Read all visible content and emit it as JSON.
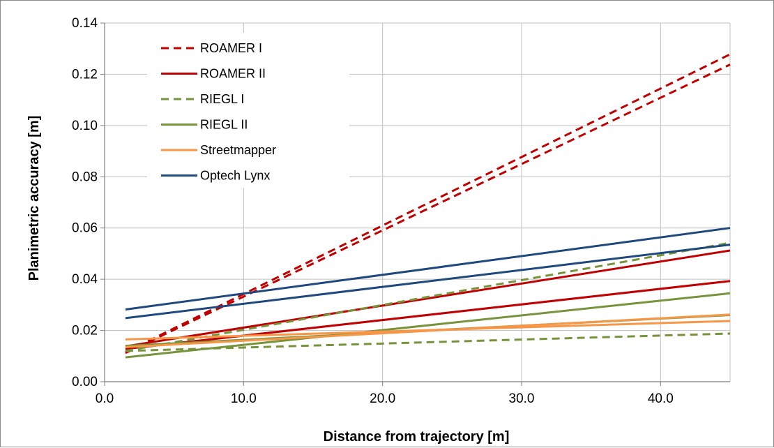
{
  "chart_data": {
    "type": "line",
    "title": "",
    "xlabel": "Distance from trajectory [m]",
    "ylabel": "Planimetric accuracy [m]",
    "xlim": [
      0,
      45
    ],
    "ylim": [
      0,
      0.14
    ],
    "x_ticks": [
      0,
      10,
      20,
      30,
      40
    ],
    "x_tick_labels": [
      "0.0",
      "10.0",
      "20.0",
      "30.0",
      "40.0"
    ],
    "y_ticks": [
      0,
      0.02,
      0.04,
      0.06,
      0.08,
      0.1,
      0.12,
      0.14
    ],
    "y_tick_labels": [
      "0.00",
      "0.02",
      "0.04",
      "0.06",
      "0.08",
      "0.10",
      "0.12",
      "0.14"
    ],
    "grid": true,
    "legend_position": "top-left",
    "legend": [
      {
        "label": "ROAMER I",
        "color": "#c00000",
        "dashed": true
      },
      {
        "label": "ROAMER II",
        "color": "#c00000",
        "dashed": false
      },
      {
        "label": "RIEGL I",
        "color": "#77933c",
        "dashed": true
      },
      {
        "label": "RIEGL II",
        "color": "#77933c",
        "dashed": false
      },
      {
        "label": "Streetmapper",
        "color": "#f79646",
        "dashed": false
      },
      {
        "label": "Optech Lynx",
        "color": "#1f497d",
        "dashed": false
      }
    ],
    "series": [
      {
        "name": "ROAMER I",
        "color": "#c00000",
        "dashed": true,
        "x": [
          1.5,
          45
        ],
        "y": [
          0.0115,
          0.1278
        ]
      },
      {
        "name": "ROAMER I",
        "color": "#c00000",
        "dashed": true,
        "x": [
          1.5,
          45
        ],
        "y": [
          0.0112,
          0.1238
        ]
      },
      {
        "name": "ROAMER II",
        "color": "#c00000",
        "dashed": false,
        "x": [
          1.5,
          45
        ],
        "y": [
          0.0138,
          0.0512
        ]
      },
      {
        "name": "ROAMER II",
        "color": "#c00000",
        "dashed": false,
        "x": [
          1.5,
          45
        ],
        "y": [
          0.0128,
          0.0393
        ]
      },
      {
        "name": "RIEGL I",
        "color": "#77933c",
        "dashed": true,
        "x": [
          1.5,
          45
        ],
        "y": [
          0.012,
          0.0542
        ]
      },
      {
        "name": "RIEGL I",
        "color": "#77933c",
        "dashed": true,
        "x": [
          1.5,
          45
        ],
        "y": [
          0.012,
          0.0188
        ]
      },
      {
        "name": "RIEGL II",
        "color": "#77933c",
        "dashed": false,
        "x": [
          1.5,
          45
        ],
        "y": [
          0.0095,
          0.0345
        ]
      },
      {
        "name": "RIEGL II",
        "color": "#77933c",
        "dashed": false,
        "x": [
          1.5,
          45
        ],
        "y": [
          0.014,
          0.026
        ]
      },
      {
        "name": "Streetmapper",
        "color": "#f79646",
        "dashed": false,
        "x": [
          1.5,
          45
        ],
        "y": [
          0.0165,
          0.0237
        ]
      },
      {
        "name": "Streetmapper",
        "color": "#f79646",
        "dashed": false,
        "x": [
          1.5,
          45
        ],
        "y": [
          0.0135,
          0.0262
        ]
      },
      {
        "name": "Optech Lynx",
        "color": "#1f497d",
        "dashed": false,
        "x": [
          1.5,
          45
        ],
        "y": [
          0.0282,
          0.06
        ]
      },
      {
        "name": "Optech Lynx",
        "color": "#1f497d",
        "dashed": false,
        "x": [
          1.5,
          45
        ],
        "y": [
          0.0248,
          0.0535
        ]
      }
    ]
  }
}
